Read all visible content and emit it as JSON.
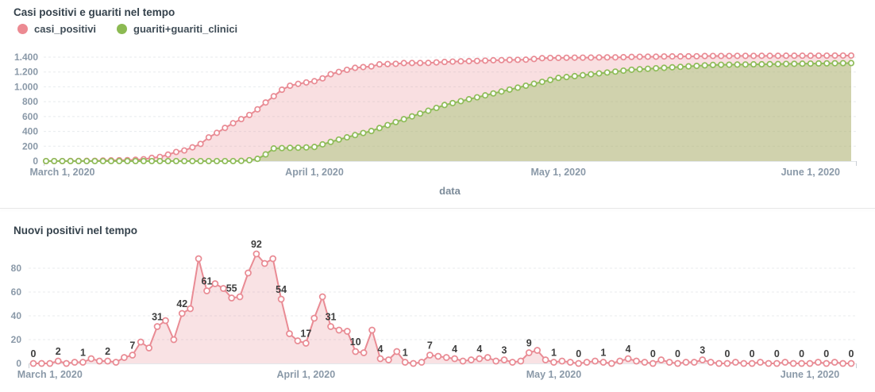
{
  "top_chart": {
    "title": "Casi positivi e guariti nel tempo",
    "xlabel": "data",
    "legend": [
      {
        "label": "casi_positivi",
        "color": "#ec8a92"
      },
      {
        "label": "guariti+guariti_clinici",
        "color": "#8cba52"
      }
    ]
  },
  "bottom_chart": {
    "title": "Nuovi positivi nel tempo"
  },
  "chart_data": [
    {
      "type": "area",
      "title": "Casi positivi e guariti nel tempo",
      "xlabel": "data",
      "ylim": [
        0,
        1400
      ],
      "y_tick_values": [
        0,
        200,
        400,
        600,
        800,
        1000,
        1200,
        1400
      ],
      "y_tick_labels": [
        "0",
        "200",
        "400",
        "600",
        "800",
        "1.000",
        "1.200",
        "1.400"
      ],
      "x_tick_labels": [
        "March 1, 2020",
        "April 1, 2020",
        "May 1, 2020",
        "June 1, 2020"
      ],
      "x_tick_day_indices": [
        2,
        33,
        63,
        94
      ],
      "grid": "dashed-horizontal",
      "legend_position": "top-left",
      "series": [
        {
          "name": "casi_positivi",
          "color": "#e98b94",
          "fill": "rgba(233,139,148,0.28)",
          "values": [
            0,
            0,
            0,
            2,
            2,
            3,
            4,
            8,
            10,
            12,
            13,
            18,
            25,
            43,
            56,
            87,
            123,
            143,
            185,
            231,
            319,
            380,
            447,
            510,
            565,
            621,
            697,
            789,
            873,
            961,
            1015,
            1040,
            1059,
            1076,
            1114,
            1170,
            1201,
            1229,
            1256,
            1266,
            1275,
            1303,
            1307,
            1310,
            1320,
            1321,
            1321,
            1322,
            1329,
            1335,
            1340,
            1344,
            1346,
            1349,
            1353,
            1358,
            1360,
            1363,
            1364,
            1366,
            1375,
            1386,
            1389,
            1390,
            1392,
            1393,
            1393,
            1394,
            1396,
            1397,
            1397,
            1399,
            1403,
            1405,
            1406,
            1406,
            1409,
            1410,
            1410,
            1411,
            1412,
            1415,
            1416,
            1416,
            1416,
            1417,
            1417,
            1417,
            1418,
            1418,
            1418,
            1419,
            1419,
            1419,
            1419,
            1420,
            1420,
            1421,
            1421,
            1421
          ]
        },
        {
          "name": "guariti+guariti_clinici",
          "color": "#8fbc59",
          "fill": "rgba(143,188,89,0.38)",
          "values": [
            0,
            0,
            0,
            0,
            0,
            0,
            0,
            0,
            0,
            0,
            0,
            0,
            0,
            0,
            0,
            0,
            0,
            0,
            0,
            0,
            0,
            0,
            0,
            0,
            3,
            12,
            30,
            90,
            170,
            175,
            178,
            180,
            184,
            190,
            225,
            258,
            290,
            320,
            350,
            378,
            405,
            445,
            485,
            525,
            564,
            602,
            640,
            678,
            716,
            755,
            781,
            807,
            833,
            859,
            885,
            911,
            937,
            963,
            989,
            1015,
            1041,
            1067,
            1093,
            1120,
            1132,
            1144,
            1157,
            1169,
            1181,
            1193,
            1205,
            1218,
            1230,
            1237,
            1243,
            1250,
            1256,
            1263,
            1269,
            1276,
            1282,
            1289,
            1295,
            1297,
            1298,
            1300,
            1301,
            1303,
            1304,
            1306,
            1307,
            1309,
            1310,
            1312,
            1313,
            1315,
            1316,
            1318,
            1319,
            1320
          ]
        }
      ]
    },
    {
      "type": "area",
      "title": "Nuovi positivi nel tempo",
      "ylim": [
        0,
        95
      ],
      "y_tick_values": [
        0,
        20,
        40,
        60,
        80
      ],
      "y_tick_labels": [
        "0",
        "20",
        "40",
        "60",
        "80"
      ],
      "x_tick_labels": [
        "March 1, 2020",
        "April 1, 2020",
        "May 1, 2020",
        "June 1, 2020"
      ],
      "x_tick_day_indices": [
        2,
        33,
        63,
        94
      ],
      "grid": "dashed-horizontal",
      "label_every": 3,
      "visible_point_labels": [
        0,
        2,
        1,
        2,
        7,
        31,
        42,
        61,
        55,
        92,
        54,
        17,
        31,
        10,
        4,
        1,
        7,
        4,
        4,
        3,
        9,
        1,
        0,
        1,
        4,
        0,
        0,
        3,
        0,
        0,
        0,
        0,
        0,
        0
      ],
      "series": [
        {
          "name": "nuovi_positivi",
          "color": "#e98b94",
          "fill": "rgba(233,139,148,0.25)",
          "values": [
            0,
            0,
            0,
            2,
            0,
            1,
            1,
            4,
            2,
            2,
            1,
            5,
            7,
            18,
            13,
            31,
            36,
            20,
            42,
            46,
            88,
            61,
            67,
            63,
            55,
            56,
            76,
            92,
            84,
            88,
            54,
            25,
            19,
            17,
            38,
            56,
            31,
            28,
            27,
            10,
            9,
            28,
            4,
            3,
            10,
            1,
            0,
            1,
            7,
            6,
            5,
            4,
            2,
            3,
            4,
            5,
            2,
            3,
            1,
            2,
            9,
            11,
            3,
            1,
            2,
            1,
            0,
            1,
            2,
            1,
            0,
            2,
            4,
            2,
            1,
            0,
            3,
            1,
            0,
            1,
            1,
            3,
            1,
            0,
            0,
            1,
            0,
            0,
            1,
            0,
            0,
            1,
            0,
            0,
            0,
            1,
            0,
            1,
            0,
            0
          ]
        }
      ]
    }
  ]
}
